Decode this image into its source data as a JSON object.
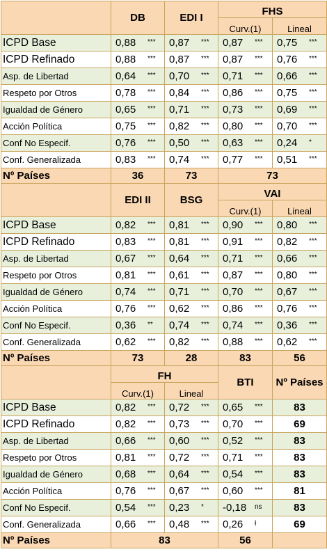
{
  "sections": [
    {
      "header": {
        "col1": "DB",
        "col2": "EDI I",
        "group": "FHS",
        "sub3": "Curv.(1)",
        "sub4": "Lineal"
      },
      "rows": [
        {
          "label": "ICPD Base",
          "v": [
            [
              "0,88",
              "***"
            ],
            [
              "0,87",
              "***"
            ],
            [
              "0,87",
              "***"
            ],
            [
              "0,75",
              "***"
            ]
          ]
        },
        {
          "label": "ICPD Refinado",
          "v": [
            [
              "0,88",
              "***"
            ],
            [
              "0,87",
              "***"
            ],
            [
              "0,87",
              "***"
            ],
            [
              "0,76",
              "***"
            ]
          ]
        },
        {
          "label": "Asp. de Libertad",
          "v": [
            [
              "0,64",
              "***"
            ],
            [
              "0,70",
              "***"
            ],
            [
              "0,71",
              "***"
            ],
            [
              "0,66",
              "***"
            ]
          ]
        },
        {
          "label": "Respeto por Otros",
          "v": [
            [
              "0,78",
              "***"
            ],
            [
              "0,84",
              "***"
            ],
            [
              "0,86",
              "***"
            ],
            [
              "0,75",
              "***"
            ]
          ]
        },
        {
          "label": "Igualdad de Género",
          "v": [
            [
              "0,65",
              "***"
            ],
            [
              "0,71",
              "***"
            ],
            [
              "0,73",
              "***"
            ],
            [
              "0,69",
              "***"
            ]
          ]
        },
        {
          "label": "Acción Política",
          "v": [
            [
              "0,75",
              "***"
            ],
            [
              "0,82",
              "***"
            ],
            [
              "0,80",
              "***"
            ],
            [
              "0,70",
              "***"
            ]
          ]
        },
        {
          "label": "Conf No Especif.",
          "v": [
            [
              "0,76",
              "***"
            ],
            [
              "0,50",
              "***"
            ],
            [
              "0,63",
              "***"
            ],
            [
              "0,24",
              "*"
            ]
          ]
        },
        {
          "label": "Conf. Generalizada",
          "v": [
            [
              "0,83",
              "***"
            ],
            [
              "0,74",
              "***"
            ],
            [
              "0,77",
              "***"
            ],
            [
              "0,51",
              "***"
            ]
          ]
        }
      ],
      "footer": {
        "label": "Nº Países",
        "c1": "36",
        "c2": "73",
        "c3": "73"
      }
    },
    {
      "header": {
        "col1": "EDI II",
        "col2": "BSG",
        "group": "VAI",
        "sub3": "Curv.(1)",
        "sub4": "Lineal"
      },
      "rows": [
        {
          "label": "ICPD Base",
          "v": [
            [
              "0,82",
              "***"
            ],
            [
              "0,81",
              "***"
            ],
            [
              "0,90",
              "***"
            ],
            [
              "0,80",
              "***"
            ]
          ]
        },
        {
          "label": "ICPD Refinado",
          "v": [
            [
              "0,83",
              "***"
            ],
            [
              "0,81",
              "***"
            ],
            [
              "0,91",
              "***"
            ],
            [
              "0,82",
              "***"
            ]
          ]
        },
        {
          "label": "Asp. de Libertad",
          "v": [
            [
              "0,67",
              "***"
            ],
            [
              "0,64",
              "***"
            ],
            [
              "0,71",
              "***"
            ],
            [
              "0,66",
              "***"
            ]
          ]
        },
        {
          "label": "Respeto por Otros",
          "v": [
            [
              "0,81",
              "***"
            ],
            [
              "0,61",
              "***"
            ],
            [
              "0,87",
              "***"
            ],
            [
              "0,80",
              "***"
            ]
          ]
        },
        {
          "label": "Igualdad de Género",
          "v": [
            [
              "0,74",
              "***"
            ],
            [
              "0,71",
              "***"
            ],
            [
              "0,70",
              "***"
            ],
            [
              "0,67",
              "***"
            ]
          ]
        },
        {
          "label": "Acción Política",
          "v": [
            [
              "0,76",
              "***"
            ],
            [
              "0,62",
              "***"
            ],
            [
              "0,86",
              "***"
            ],
            [
              "0,76",
              "***"
            ]
          ]
        },
        {
          "label": "Conf No Especif.",
          "v": [
            [
              "0,36",
              "**"
            ],
            [
              "0,74",
              "***"
            ],
            [
              "0,74",
              "***"
            ],
            [
              "0,36",
              "***"
            ]
          ]
        },
        {
          "label": "Conf. Generalizada",
          "v": [
            [
              "0,62",
              "***"
            ],
            [
              "0,82",
              "***"
            ],
            [
              "0,88",
              "***"
            ],
            [
              "0,62",
              "***"
            ]
          ]
        }
      ],
      "footer": {
        "label": "Nº Países",
        "c1": "73",
        "c2": "28",
        "c3": "83",
        "c4": "56"
      }
    },
    {
      "header": {
        "group": "FH",
        "sub1": "Curv.(1)",
        "sub2": "Lineal",
        "col3": "BTI",
        "col4": "Nº Países"
      },
      "rows": [
        {
          "label": "ICPD Base",
          "v": [
            [
              "0,82",
              "***"
            ],
            [
              "0,72",
              "***"
            ],
            [
              "0,65",
              "***"
            ]
          ],
          "n": "83"
        },
        {
          "label": "ICPD Refinado",
          "v": [
            [
              "0,82",
              "***"
            ],
            [
              "0,73",
              "***"
            ],
            [
              "0,70",
              "***"
            ]
          ],
          "n": "69"
        },
        {
          "label": "Asp. de Libertad",
          "v": [
            [
              "0,66",
              "***"
            ],
            [
              "0,60",
              "***"
            ],
            [
              "0,52",
              "***"
            ]
          ],
          "n": "83"
        },
        {
          "label": "Respeto por Otros",
          "v": [
            [
              "0,81",
              "***"
            ],
            [
              "0,72",
              "***"
            ],
            [
              "0,71",
              "***"
            ]
          ],
          "n": "83"
        },
        {
          "label": "Igualdad de Género",
          "v": [
            [
              "0,68",
              "***"
            ],
            [
              "0,64",
              "***"
            ],
            [
              "0,54",
              "***"
            ]
          ],
          "n": "83"
        },
        {
          "label": "Acción Política",
          "v": [
            [
              "0,76",
              "***"
            ],
            [
              "0,67",
              "***"
            ],
            [
              "0,60",
              "***"
            ]
          ],
          "n": "81"
        },
        {
          "label": "Conf No Especif.",
          "v": [
            [
              "0,54",
              "***"
            ],
            [
              "0,23",
              "*"
            ],
            [
              "-0,18",
              "ns"
            ]
          ],
          "n": "83"
        },
        {
          "label": "Conf. Generalizada",
          "v": [
            [
              "0,66",
              "***"
            ],
            [
              "0,48",
              "***"
            ],
            [
              "0,26",
              "ł"
            ]
          ],
          "n": "69"
        }
      ],
      "footer": {
        "label": "Nº Países",
        "c1": "83",
        "c2": "56"
      }
    }
  ],
  "colors": {
    "header_bg": "#fbd8b4",
    "row_alt_bg": "#e8f0dc",
    "border": "#c9a45c"
  }
}
